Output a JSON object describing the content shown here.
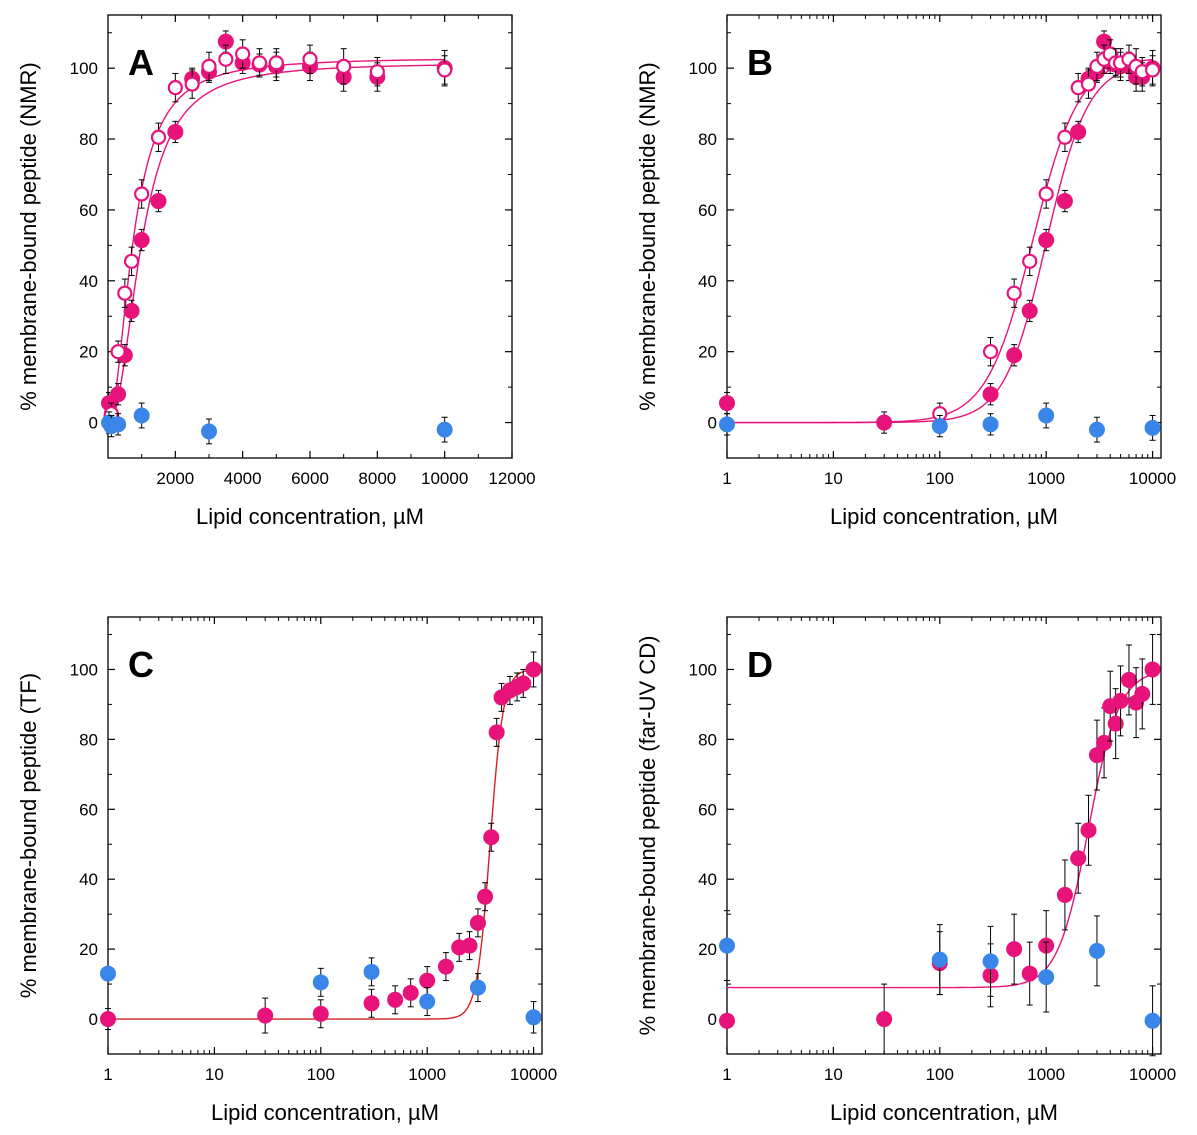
{
  "colors": {
    "lipid_mix": "#e8137a",
    "control": "#3a86e8",
    "fit_tf": "#d62020",
    "axis": "#000000"
  },
  "chart_data": [
    {
      "type": "scatter",
      "panel_label": "A",
      "xscale": "linear",
      "xlim": [
        0,
        12000
      ],
      "ylim": [
        -10,
        115
      ],
      "xticks": [
        2000,
        4000,
        6000,
        8000,
        10000,
        12000
      ],
      "xtick_labels": [
        "2000",
        "4000",
        "6000",
        "8000",
        "10000",
        "12000"
      ],
      "yticks": [
        0,
        20,
        40,
        60,
        80,
        100
      ],
      "xlabel": "Lipid concentration, µM",
      "ylabel": "% membrane-bound peptide (NMR)",
      "series": [
        {
          "marker": "filled",
          "color": "#e8137a",
          "x": [
            30,
            100,
            300,
            500,
            700,
            1000,
            1500,
            2000,
            2500,
            3000,
            3500,
            4000,
            4500,
            5000,
            6000,
            7000,
            8000,
            10000
          ],
          "y": [
            5.5,
            1.5,
            8,
            19,
            31.5,
            51.5,
            62.5,
            82,
            97,
            99,
            107.5,
            101.5,
            101,
            100.5,
            100.5,
            97.5,
            97.5,
            100
          ],
          "err": [
            3,
            3,
            3,
            3,
            3,
            3,
            3,
            3,
            3,
            3,
            3,
            3,
            3,
            4,
            4,
            4,
            4,
            5
          ]
        },
        {
          "marker": "open",
          "color": "#e8137a",
          "x": [
            100,
            300,
            500,
            700,
            1000,
            1500,
            2000,
            2500,
            3000,
            3500,
            4000,
            4500,
            5000,
            6000,
            7000,
            8000,
            10000
          ],
          "y": [
            2.5,
            20,
            36.5,
            45.5,
            64.5,
            80.5,
            94.5,
            95.5,
            100.5,
            102.5,
            104,
            101.5,
            101.5,
            102.5,
            100.5,
            99,
            99.5
          ],
          "err": [
            3,
            3,
            4,
            4,
            4,
            4,
            4,
            4,
            4,
            4,
            4,
            4,
            4,
            4,
            5,
            4,
            4
          ]
        },
        {
          "marker": "filled",
          "color": "#3a86e8",
          "x": [
            30,
            100,
            300,
            1000,
            3000,
            10000
          ],
          "y": [
            0,
            -1,
            -0.5,
            2,
            -2.5,
            -2
          ],
          "err": [
            3,
            3,
            3,
            3.5,
            3.5,
            3.5
          ]
        }
      ],
      "fits": [
        {
          "color": "#e8137a",
          "x0": 1000,
          "ymax": 101.5,
          "n": 2.2
        },
        {
          "color": "#e8137a",
          "x0": 750,
          "ymax": 103,
          "n": 2
        }
      ]
    },
    {
      "type": "scatter",
      "panel_label": "B",
      "xscale": "log",
      "xlim": [
        1,
        12000
      ],
      "ylim": [
        -10,
        115
      ],
      "xticks": [
        1,
        10,
        100,
        1000,
        10000
      ],
      "xtick_labels": [
        "1",
        "10",
        "100",
        "1000",
        "10000"
      ],
      "yticks": [
        0,
        20,
        40,
        60,
        80,
        100
      ],
      "xlabel": "Lipid concentration, µM",
      "ylabel": "% membrane-bound peptide (NMR)",
      "series": [
        {
          "marker": "filled",
          "color": "#e8137a",
          "x": [
            1,
            30,
            300,
            500,
            700,
            1000,
            1500,
            2000,
            2500,
            3000,
            3500,
            4000,
            4500,
            5000,
            6000,
            7000,
            8000,
            10000
          ],
          "y": [
            5.5,
            0,
            8,
            19,
            31.5,
            51.5,
            62.5,
            82,
            97,
            99,
            107.5,
            101.5,
            101,
            100.5,
            100.5,
            97.5,
            97.5,
            100
          ],
          "err": [
            3,
            3,
            3,
            3,
            3,
            3,
            3,
            3,
            3,
            3,
            3,
            3,
            3,
            4,
            4,
            4,
            4,
            5
          ]
        },
        {
          "marker": "open",
          "color": "#e8137a",
          "x": [
            100,
            300,
            500,
            700,
            1000,
            1500,
            2000,
            2500,
            3000,
            3500,
            4000,
            4500,
            5000,
            6000,
            7000,
            8000,
            10000
          ],
          "y": [
            2.5,
            20,
            36.5,
            45.5,
            64.5,
            80.5,
            94.5,
            95.5,
            100.5,
            102.5,
            104,
            101.5,
            101.5,
            102.5,
            100.5,
            99,
            99.5
          ],
          "err": [
            3,
            4,
            4,
            4,
            4,
            4,
            4,
            4,
            4,
            4,
            4,
            4,
            4,
            4,
            5,
            4,
            4
          ]
        },
        {
          "marker": "filled",
          "color": "#3a86e8",
          "x": [
            1,
            100,
            300,
            1000,
            3000,
            10000
          ],
          "y": [
            -0.5,
            -1,
            -0.5,
            2,
            -2,
            -1.5
          ],
          "err": [
            3,
            3,
            3,
            3.5,
            3.5,
            3.5
          ]
        }
      ],
      "fits": [
        {
          "color": "#e8137a",
          "x0": 1000,
          "ymax": 101.5,
          "n": 2.2
        },
        {
          "color": "#e8137a",
          "x0": 750,
          "ymax": 103,
          "n": 2
        }
      ]
    },
    {
      "type": "scatter",
      "panel_label": "C",
      "xscale": "log",
      "xlim": [
        1,
        12000
      ],
      "ylim": [
        -10,
        115
      ],
      "xticks": [
        1,
        10,
        100,
        1000,
        10000
      ],
      "xtick_labels": [
        "1",
        "10",
        "100",
        "1000",
        "10000"
      ],
      "yticks": [
        0,
        20,
        40,
        60,
        80,
        100
      ],
      "xlabel": "Lipid concentration, µM",
      "ylabel": "% membrane-bound peptide (TF)",
      "series": [
        {
          "marker": "filled",
          "color": "#e8137a",
          "x": [
            1,
            30,
            100,
            300,
            500,
            700,
            1000,
            1500,
            2000,
            2500,
            3000,
            3500,
            4000,
            4500,
            5000,
            6000,
            7000,
            8000,
            10000
          ],
          "y": [
            0,
            1,
            1.5,
            4.5,
            5.5,
            7.5,
            11,
            15,
            20.5,
            21,
            27.5,
            35,
            52,
            82,
            92,
            94,
            95,
            96,
            100
          ],
          "err": [
            3,
            5,
            4,
            4,
            4,
            4,
            4,
            4,
            4,
            4,
            4,
            4,
            4,
            4,
            4,
            4,
            4,
            4,
            5
          ]
        },
        {
          "marker": "filled",
          "color": "#3a86e8",
          "x": [
            1,
            100,
            300,
            1000,
            3000,
            10000
          ],
          "y": [
            13,
            10.5,
            13.5,
            5,
            9,
            0.5
          ],
          "err": [
            0,
            4,
            4,
            4,
            4,
            4.5
          ]
        }
      ],
      "fits": [
        {
          "color": "#d62020",
          "x0": 3900,
          "ymax": 100,
          "n": 7
        }
      ]
    },
    {
      "type": "scatter",
      "panel_label": "D",
      "xscale": "log",
      "xlim": [
        1,
        12000
      ],
      "ylim": [
        -10,
        115
      ],
      "xticks": [
        1,
        10,
        100,
        1000,
        10000
      ],
      "xtick_labels": [
        "1",
        "10",
        "100",
        "1000",
        "10000"
      ],
      "yticks": [
        0,
        20,
        40,
        60,
        80,
        100
      ],
      "xlabel": "Lipid concentration, µM",
      "ylabel": "% membrane-bound peptide (far-UV CD)",
      "series": [
        {
          "marker": "filled",
          "color": "#e8137a",
          "x": [
            1,
            30,
            100,
            300,
            500,
            700,
            1000,
            1500,
            2000,
            2500,
            3000,
            3500,
            4000,
            4500,
            5000,
            6000,
            7000,
            8000,
            10000
          ],
          "y": [
            -0.5,
            0,
            16,
            12.5,
            20,
            13,
            21,
            35.5,
            46,
            54,
            75.5,
            79,
            89.5,
            84.5,
            91,
            97,
            90.5,
            93,
            100
          ],
          "err": [
            0,
            10,
            9,
            9,
            10,
            9,
            10,
            10,
            10,
            10,
            10,
            10,
            10,
            10,
            10,
            10,
            10,
            10,
            10
          ]
        },
        {
          "marker": "filled",
          "color": "#3a86e8",
          "x": [
            1,
            100,
            300,
            1000,
            3000,
            10000
          ],
          "y": [
            21,
            17,
            16.5,
            12,
            19.5,
            -0.5
          ],
          "err": [
            10,
            10,
            10,
            10,
            10,
            10
          ]
        }
      ],
      "fits": [
        {
          "color": "#e8137a",
          "x0": 2500,
          "ybase": 9,
          "ymax": 100,
          "n": 3
        }
      ]
    }
  ]
}
